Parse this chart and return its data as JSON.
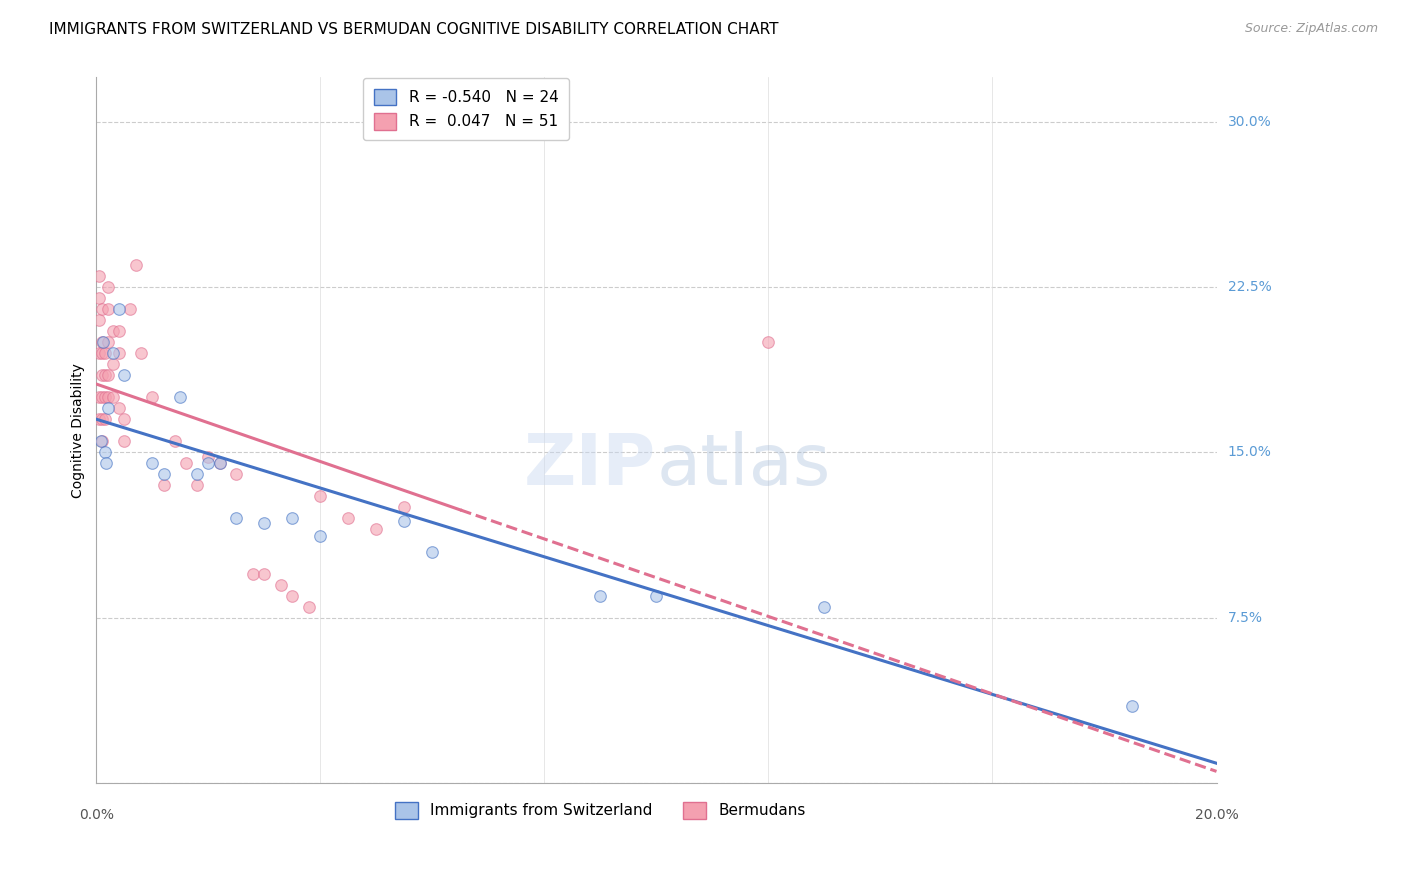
{
  "title": "IMMIGRANTS FROM SWITZERLAND VS BERMUDAN COGNITIVE DISABILITY CORRELATION CHART",
  "source": "Source: ZipAtlas.com",
  "ylabel": "Cognitive Disability",
  "watermark": "ZIPatlas",
  "xlim": [
    0.0,
    0.2
  ],
  "ylim": [
    0.0,
    0.32
  ],
  "y_ticks": [
    0.0,
    0.075,
    0.15,
    0.225,
    0.3
  ],
  "y_tick_labels_right": [
    "",
    "7.5%",
    "15.0%",
    "22.5%",
    "30.0%"
  ],
  "blue_R": -0.54,
  "blue_N": 24,
  "pink_R": 0.047,
  "pink_N": 51,
  "blue_color": "#aac4e8",
  "pink_color": "#f4a0b0",
  "blue_line_color": "#4472c4",
  "pink_line_color": "#e07090",
  "swiss_x": [
    0.0008,
    0.0012,
    0.0015,
    0.0018,
    0.002,
    0.003,
    0.004,
    0.005,
    0.01,
    0.012,
    0.015,
    0.018,
    0.02,
    0.022,
    0.025,
    0.03,
    0.035,
    0.04,
    0.055,
    0.06,
    0.09,
    0.1,
    0.13,
    0.185
  ],
  "swiss_y": [
    0.155,
    0.2,
    0.15,
    0.145,
    0.17,
    0.195,
    0.215,
    0.185,
    0.145,
    0.14,
    0.175,
    0.14,
    0.145,
    0.145,
    0.12,
    0.118,
    0.12,
    0.112,
    0.119,
    0.105,
    0.085,
    0.085,
    0.08,
    0.035
  ],
  "berm_x": [
    0.0005,
    0.0005,
    0.0005,
    0.0005,
    0.0005,
    0.0005,
    0.001,
    0.001,
    0.001,
    0.001,
    0.001,
    0.001,
    0.001,
    0.0015,
    0.0015,
    0.0015,
    0.0015,
    0.002,
    0.002,
    0.002,
    0.002,
    0.002,
    0.003,
    0.003,
    0.003,
    0.004,
    0.004,
    0.004,
    0.005,
    0.005,
    0.006,
    0.007,
    0.008,
    0.01,
    0.012,
    0.014,
    0.016,
    0.018,
    0.02,
    0.022,
    0.025,
    0.028,
    0.03,
    0.033,
    0.035,
    0.038,
    0.04,
    0.045,
    0.05,
    0.055,
    0.12
  ],
  "berm_y": [
    0.195,
    0.21,
    0.22,
    0.23,
    0.175,
    0.165,
    0.2,
    0.215,
    0.195,
    0.185,
    0.175,
    0.165,
    0.155,
    0.195,
    0.185,
    0.175,
    0.165,
    0.225,
    0.215,
    0.2,
    0.185,
    0.175,
    0.205,
    0.19,
    0.175,
    0.205,
    0.195,
    0.17,
    0.165,
    0.155,
    0.215,
    0.235,
    0.195,
    0.175,
    0.135,
    0.155,
    0.145,
    0.135,
    0.148,
    0.145,
    0.14,
    0.095,
    0.095,
    0.09,
    0.085,
    0.08,
    0.13,
    0.12,
    0.115,
    0.125,
    0.2
  ],
  "title_fontsize": 11,
  "axis_label_fontsize": 10,
  "tick_fontsize": 10,
  "legend_fontsize": 11,
  "source_fontsize": 9,
  "marker_size": 70,
  "marker_alpha": 0.6,
  "line_width": 2.2
}
